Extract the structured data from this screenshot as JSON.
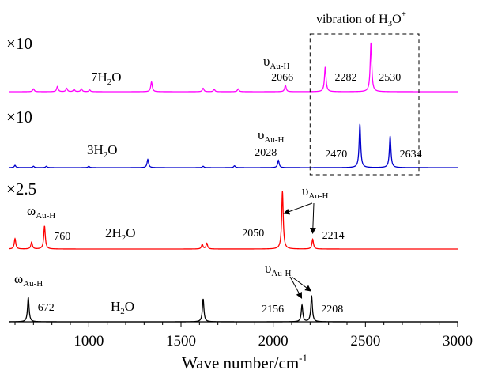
{
  "chart_data": {
    "type": "line",
    "xlabel": "Wave number/cm",
    "xlabel_sup": "-1",
    "xlim": [
      570,
      3000
    ],
    "xticks": [
      1000,
      1500,
      2000,
      2500,
      3000
    ],
    "ylabel": "",
    "grid": false,
    "legend": "none",
    "peak_width_cm": 5,
    "box_label": {
      "base": "vibration of H",
      "sub": "3",
      "mid": "O",
      "sup": "+"
    },
    "box_x_range": [
      2200,
      2790
    ],
    "series": [
      {
        "id": "7h2o",
        "color": "#ff00ff",
        "multiplier": "×10",
        "molecule": {
          "base": "7H",
          "sub": "2",
          "rest": "O"
        },
        "peaks": [
          {
            "x": 700,
            "h": 0.05
          },
          {
            "x": 830,
            "h": 0.09
          },
          {
            "x": 880,
            "h": 0.06
          },
          {
            "x": 920,
            "h": 0.04
          },
          {
            "x": 960,
            "h": 0.05
          },
          {
            "x": 1005,
            "h": 0.03
          },
          {
            "x": 1340,
            "h": 0.17
          },
          {
            "x": 1620,
            "h": 0.06
          },
          {
            "x": 1680,
            "h": 0.04
          },
          {
            "x": 1810,
            "h": 0.05
          },
          {
            "x": 2066,
            "h": 0.11
          },
          {
            "x": 2282,
            "h": 0.43
          },
          {
            "x": 2530,
            "h": 0.85
          }
        ],
        "labels": [
          {
            "text": "2066",
            "x": 2066
          },
          {
            "text": "2282",
            "x": 2282
          },
          {
            "text": "2530",
            "x": 2530
          }
        ],
        "mode": {
          "sym": "υ",
          "sub": "Au-H"
        }
      },
      {
        "id": "3h2o",
        "color": "#0000cc",
        "multiplier": "×10",
        "molecule": {
          "base": "3H",
          "sub": "2",
          "rest": "O"
        },
        "peaks": [
          {
            "x": 600,
            "h": 0.05
          },
          {
            "x": 700,
            "h": 0.03
          },
          {
            "x": 770,
            "h": 0.03
          },
          {
            "x": 1000,
            "h": 0.03
          },
          {
            "x": 1320,
            "h": 0.18
          },
          {
            "x": 1620,
            "h": 0.03
          },
          {
            "x": 1790,
            "h": 0.04
          },
          {
            "x": 2028,
            "h": 0.16
          },
          {
            "x": 2470,
            "h": 0.95
          },
          {
            "x": 2634,
            "h": 0.69
          }
        ],
        "labels": [
          {
            "text": "2028",
            "x": 2028
          },
          {
            "text": "2470",
            "x": 2470
          },
          {
            "text": "2634",
            "x": 2634
          }
        ],
        "mode": {
          "sym": "υ",
          "sub": "Au-H"
        }
      },
      {
        "id": "2h2o",
        "color": "#ff0000",
        "multiplier": "×2.5",
        "molecule": {
          "base": "2H",
          "sub": "2",
          "rest": "O"
        },
        "peaks": [
          {
            "x": 600,
            "h": 0.18
          },
          {
            "x": 690,
            "h": 0.12
          },
          {
            "x": 760,
            "h": 0.4
          },
          {
            "x": 1615,
            "h": 0.08
          },
          {
            "x": 1640,
            "h": 0.1
          },
          {
            "x": 2050,
            "h": 1.0
          },
          {
            "x": 2214,
            "h": 0.17
          }
        ],
        "labels": [
          {
            "text": "760",
            "x": 760
          },
          {
            "text": "2050",
            "x": 2050
          },
          {
            "text": "2214",
            "x": 2214
          }
        ],
        "mode_left": {
          "sym": "ω",
          "sub": "Au-H"
        },
        "mode": {
          "sym": "υ",
          "sub": "Au-H"
        }
      },
      {
        "id": "h2o",
        "color": "#000000",
        "multiplier": "",
        "molecule": {
          "base": "H",
          "sub": "2",
          "rest": "O"
        },
        "peaks": [
          {
            "x": 672,
            "h": 0.74
          },
          {
            "x": 1620,
            "h": 0.69
          },
          {
            "x": 2156,
            "h": 0.5
          },
          {
            "x": 2208,
            "h": 0.79
          }
        ],
        "labels": [
          {
            "text": "672",
            "x": 672
          },
          {
            "text": "2156",
            "x": 2156
          },
          {
            "text": "2208",
            "x": 2208
          }
        ],
        "mode_left": {
          "sym": "ω",
          "sub": "Au-H"
        },
        "mode": {
          "sym": "υ",
          "sub": "Au-H"
        }
      }
    ]
  }
}
